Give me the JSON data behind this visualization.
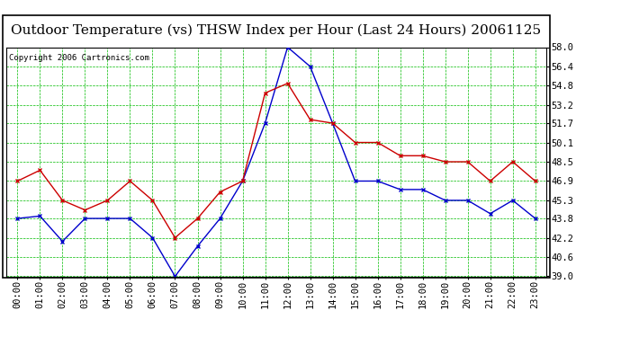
{
  "title": "Outdoor Temperature (vs) THSW Index per Hour (Last 24 Hours) 20061125",
  "copyright": "Copyright 2006 Cartronics.com",
  "hours": [
    "00:00",
    "01:00",
    "02:00",
    "03:00",
    "04:00",
    "05:00",
    "06:00",
    "07:00",
    "08:00",
    "09:00",
    "10:00",
    "11:00",
    "12:00",
    "13:00",
    "14:00",
    "15:00",
    "16:00",
    "17:00",
    "18:00",
    "19:00",
    "20:00",
    "21:00",
    "22:00",
    "23:00"
  ],
  "blue_data": [
    43.8,
    44.0,
    41.9,
    43.8,
    43.8,
    43.8,
    42.2,
    39.0,
    41.5,
    43.8,
    46.9,
    51.7,
    58.0,
    56.4,
    51.7,
    46.9,
    46.9,
    46.2,
    46.2,
    45.3,
    45.3,
    44.2,
    45.3,
    43.8
  ],
  "red_data": [
    46.9,
    47.8,
    45.3,
    44.5,
    45.3,
    46.9,
    45.3,
    42.2,
    43.8,
    46.0,
    46.9,
    54.2,
    55.0,
    52.0,
    51.7,
    50.1,
    50.1,
    49.0,
    49.0,
    48.5,
    48.5,
    46.9,
    48.5,
    46.9
  ],
  "ylim": [
    39.0,
    58.0
  ],
  "yticks": [
    39.0,
    40.6,
    42.2,
    43.8,
    45.3,
    46.9,
    48.5,
    50.1,
    51.7,
    53.2,
    54.8,
    56.4,
    58.0
  ],
  "bg_color": "#ffffff",
  "plot_bg": "#ffffff",
  "grid_color": "#00bb00",
  "blue_color": "#0000cc",
  "red_color": "#cc0000",
  "title_fontsize": 11,
  "copyright_fontsize": 6.5,
  "tick_fontsize": 7.5,
  "marker_size": 3.5
}
